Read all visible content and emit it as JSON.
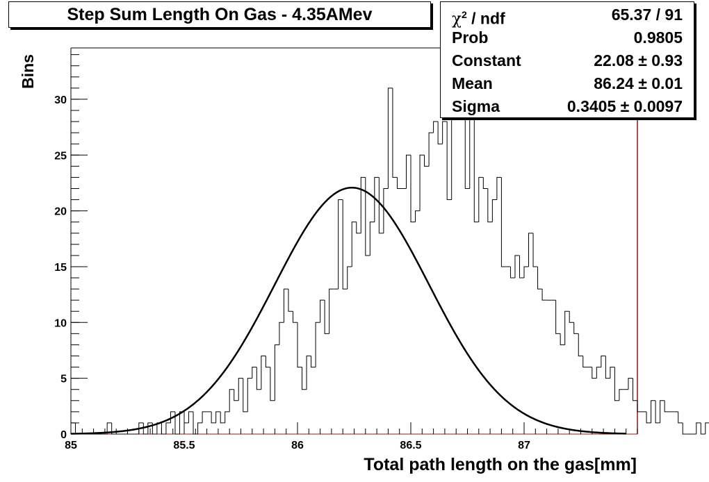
{
  "title": "Step Sum Length On Gas - 4.35AMev",
  "stats": {
    "chi2_label_symbol": "χ",
    "chi2_label_sup": "2",
    "chi2_label_rest": " / ndf",
    "chi2_value": "65.37 / 91",
    "prob_label": "Prob",
    "prob_value": "0.9805",
    "constant_label": "Constant",
    "constant_value": "22.08 ± 0.93",
    "mean_label": "Mean",
    "mean_value": "86.24 ± 0.01",
    "sigma_label": "Sigma",
    "sigma_value": "0.3405 ± 0.0097"
  },
  "colors": {
    "axis_right": "#8b1a1a",
    "histogram": "#000000",
    "fit": "#000000"
  },
  "chart_data": {
    "type": "histogram",
    "xlabel": "Total path length on the gas[mm]",
    "ylabel": "Bins",
    "xlim": [
      85,
      87.5
    ],
    "ylim": [
      0,
      34.6
    ],
    "bin_width": 0.02,
    "bin_start": 85.0,
    "xticks": [
      85,
      85.5,
      86,
      86.5,
      87
    ],
    "xtick_labels": [
      "85",
      "85.5",
      "86",
      "86.5",
      "87"
    ],
    "yticks": [
      0,
      5,
      10,
      15,
      20,
      25,
      30
    ],
    "ytick_labels": [
      "0",
      "5",
      "10",
      "15",
      "20",
      "25",
      "30"
    ],
    "counts": [
      1,
      0,
      0,
      0,
      0,
      0,
      0,
      0,
      1,
      0,
      0,
      0,
      0,
      0,
      0,
      1,
      0,
      1,
      0,
      1,
      0,
      1,
      2,
      0,
      2,
      1,
      2,
      0,
      1,
      2,
      2,
      1,
      2,
      1,
      2,
      4,
      3,
      5,
      2,
      5,
      6,
      4,
      7,
      6,
      3,
      8,
      10,
      13,
      11,
      10,
      6,
      4,
      7,
      6,
      10,
      12,
      9,
      13,
      13,
      21,
      13,
      15,
      19,
      18,
      23,
      16,
      19,
      23,
      18,
      22,
      31,
      23,
      22,
      22,
      25,
      19,
      20,
      25,
      24,
      27,
      28,
      26,
      28,
      21,
      29,
      32,
      33,
      22,
      30,
      19,
      23,
      22,
      19,
      21,
      23,
      15,
      15,
      14,
      16,
      14,
      15,
      18,
      15,
      13,
      12,
      12,
      12,
      9,
      8,
      11,
      10,
      9,
      7,
      6,
      6,
      5,
      6,
      7,
      5,
      6,
      3,
      4,
      4,
      5,
      3,
      2,
      2,
      1,
      3,
      1,
      3,
      2,
      2,
      2,
      1,
      0,
      0,
      0,
      1,
      0,
      1,
      1,
      0,
      0,
      1,
      0,
      0,
      0,
      0,
      0
    ],
    "fit": {
      "type": "gaus",
      "constant": 22.08,
      "mean": 86.24,
      "sigma": 0.3405
    }
  }
}
